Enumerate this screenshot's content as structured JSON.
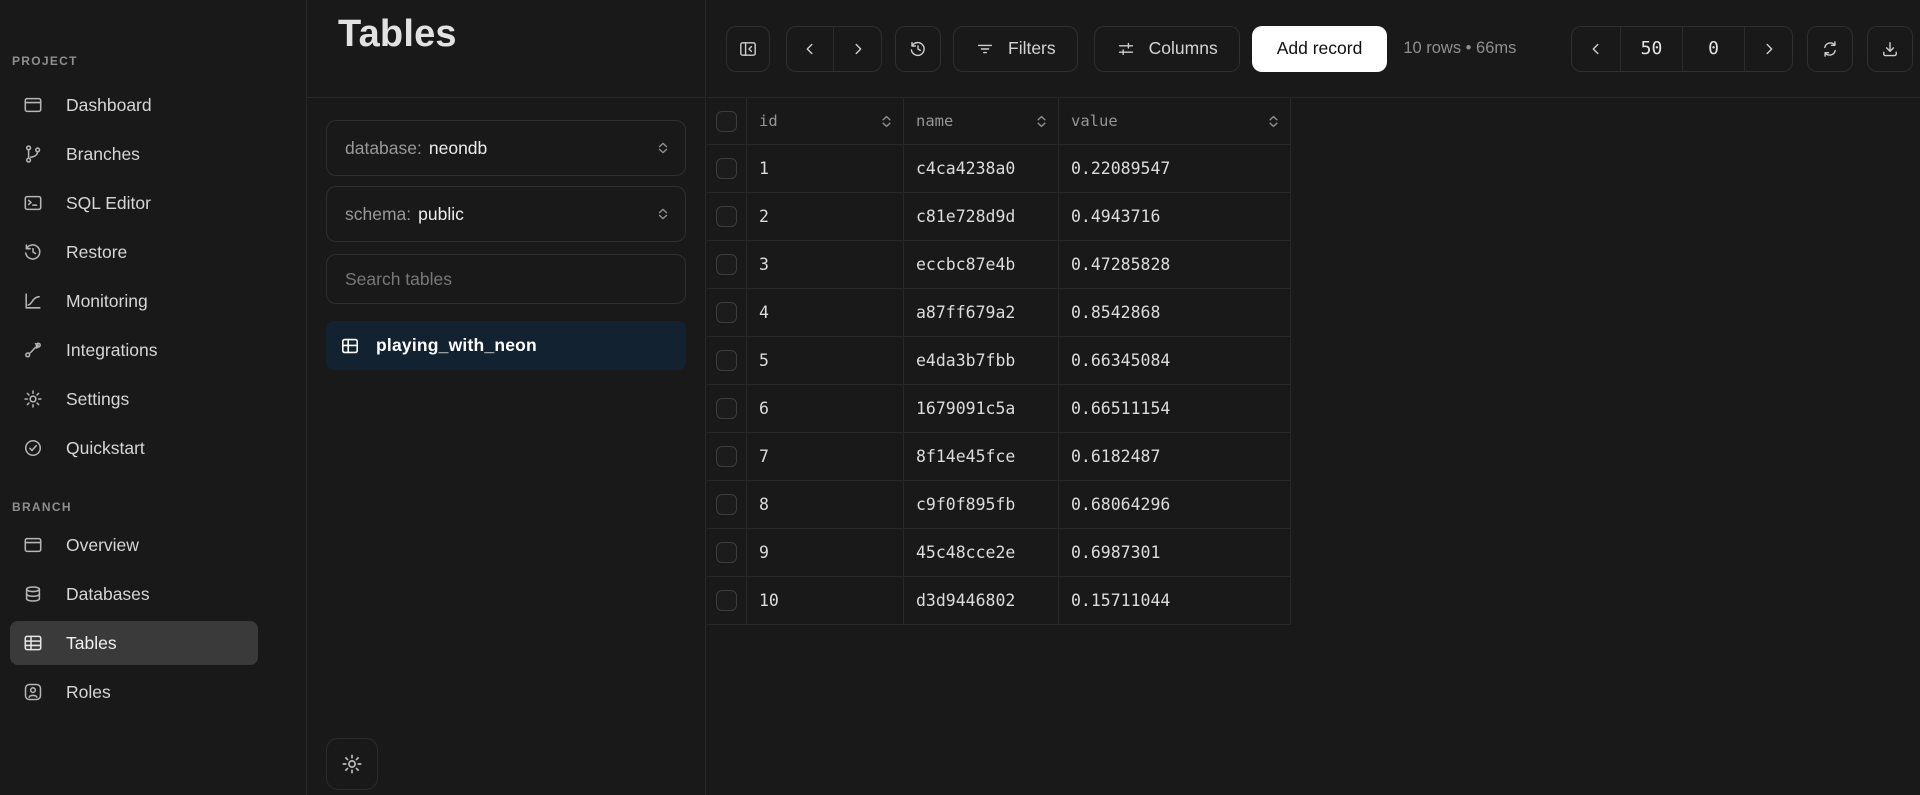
{
  "sidebar": {
    "sections": [
      {
        "label": "PROJECT",
        "items": [
          {
            "label": "Dashboard",
            "icon": "dashboard-icon",
            "active": false
          },
          {
            "label": "Branches",
            "icon": "branches-icon",
            "active": false
          },
          {
            "label": "SQL Editor",
            "icon": "sql-editor-icon",
            "active": false
          },
          {
            "label": "Restore",
            "icon": "restore-icon",
            "active": false
          },
          {
            "label": "Monitoring",
            "icon": "monitoring-icon",
            "active": false
          },
          {
            "label": "Integrations",
            "icon": "integrations-icon",
            "active": false
          },
          {
            "label": "Settings",
            "icon": "settings-icon",
            "active": false
          },
          {
            "label": "Quickstart",
            "icon": "quickstart-icon",
            "active": false
          }
        ]
      },
      {
        "label": "BRANCH",
        "items": [
          {
            "label": "Overview",
            "icon": "overview-icon",
            "active": false
          },
          {
            "label": "Databases",
            "icon": "databases-icon",
            "active": false
          },
          {
            "label": "Tables",
            "icon": "tables-icon",
            "active": true
          },
          {
            "label": "Roles",
            "icon": "roles-icon",
            "active": false
          }
        ]
      }
    ]
  },
  "panel": {
    "title": "Tables",
    "database_label": "database:",
    "database_value": "neondb",
    "schema_label": "schema:",
    "schema_value": "public",
    "search_placeholder": "Search tables",
    "selected_table": "playing_with_neon"
  },
  "toolbar": {
    "filters_label": "Filters",
    "columns_label": "Columns",
    "add_record_label": "Add record",
    "status": "10 rows • 66ms",
    "page_size": "50",
    "page_offset": "0"
  },
  "table": {
    "columns": [
      "id",
      "name",
      "value"
    ],
    "rows": [
      [
        "1",
        "c4ca4238a0",
        "0.22089547"
      ],
      [
        "2",
        "c81e728d9d",
        "0.4943716"
      ],
      [
        "3",
        "eccbc87e4b",
        "0.47285828"
      ],
      [
        "4",
        "a87ff679a2",
        "0.8542868"
      ],
      [
        "5",
        "e4da3b7fbb",
        "0.66345084"
      ],
      [
        "6",
        "1679091c5a",
        "0.66511154"
      ],
      [
        "7",
        "8f14e45fce",
        "0.6182487"
      ],
      [
        "8",
        "c9f0f895fb",
        "0.68064296"
      ],
      [
        "9",
        "45c48cce2e",
        "0.6987301"
      ],
      [
        "10",
        "d3d9446802",
        "0.15711044"
      ]
    ]
  },
  "colors": {
    "background": "#191919",
    "border": "#272727",
    "active_item_bg": "#3a3a3a",
    "selected_table_bg": "#122230",
    "add_record_bg": "#ffffff",
    "text_primary": "#d7d7d7",
    "text_dim": "#8f8f8f"
  }
}
